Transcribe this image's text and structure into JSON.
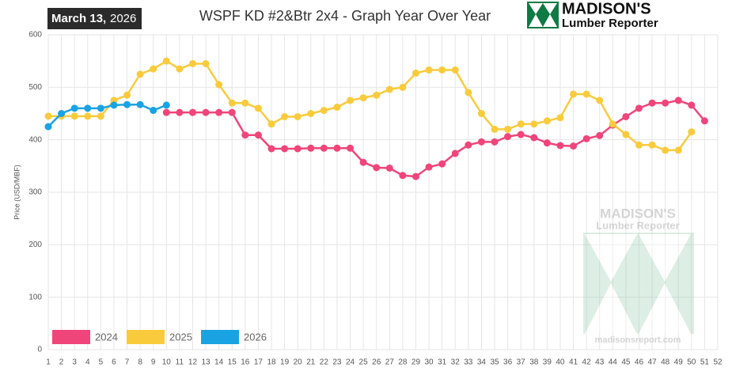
{
  "header": {
    "date_bold": "March 13,",
    "date_year": "2026",
    "logo_name": "MADISON'S",
    "logo_sub": "Lumber Reporter"
  },
  "watermark": {
    "name": "MADISON'S",
    "sub": "Lumber Reporter",
    "url": "madisonsreport.com"
  },
  "chart_data": {
    "type": "line",
    "title": "WSPF KD #2&Btr 2x4 - Graph Year Over Year",
    "y_label": "Price (USD/MBF)",
    "categories": [
      "1",
      "2",
      "3",
      "4",
      "5",
      "6",
      "7",
      "8",
      "9",
      "10",
      "11",
      "12",
      "13",
      "14",
      "15",
      "16",
      "17",
      "18",
      "19",
      "20",
      "21",
      "22",
      "23",
      "24",
      "25",
      "26",
      "27",
      "28",
      "29",
      "30",
      "31",
      "32",
      "33",
      "34",
      "35",
      "36",
      "37",
      "38",
      "39",
      "40",
      "41",
      "42",
      "43",
      "44",
      "45",
      "46",
      "47",
      "48",
      "49",
      "50",
      "51",
      "52"
    ],
    "series": [
      {
        "name": "2024",
        "color": "#f0457a",
        "values": [
          null,
          null,
          null,
          null,
          null,
          null,
          null,
          null,
          null,
          452,
          452,
          452,
          452,
          452,
          452,
          409,
          409,
          383,
          383,
          383,
          384,
          384,
          384,
          384,
          357,
          347,
          346,
          332,
          330,
          348,
          354,
          374,
          390,
          396,
          396,
          406,
          410,
          404,
          394,
          389,
          388,
          402,
          408,
          428,
          444,
          460,
          470,
          470,
          475,
          466,
          436,
          null
        ]
      },
      {
        "name": "2025",
        "color": "#f9cb3c",
        "values": [
          445,
          445,
          445,
          445,
          445,
          475,
          485,
          525,
          535,
          550,
          535,
          545,
          545,
          505,
          470,
          470,
          460,
          430,
          444,
          444,
          450,
          456,
          462,
          475,
          480,
          485,
          496,
          500,
          527,
          533,
          533,
          533,
          490,
          450,
          420,
          420,
          430,
          430,
          436,
          442,
          487,
          487,
          475,
          430,
          410,
          390,
          390,
          380,
          380,
          415,
          null,
          null
        ]
      },
      {
        "name": "2026",
        "color": "#19a3e3",
        "values": [
          425,
          450,
          460,
          460,
          460,
          466,
          467,
          467,
          456,
          466,
          null,
          null,
          null,
          null,
          null,
          null,
          null,
          null,
          null,
          null,
          null,
          null,
          null,
          null,
          null,
          null,
          null,
          null,
          null,
          null,
          null,
          null,
          null,
          null,
          null,
          null,
          null,
          null,
          null,
          null,
          null,
          null,
          null,
          null,
          null,
          null,
          null,
          null,
          null,
          null,
          null,
          null
        ]
      }
    ],
    "ylim": [
      0,
      600
    ],
    "yticks": [
      0,
      100,
      200,
      300,
      400,
      500,
      600
    ],
    "grid": true,
    "legend": "lower left"
  }
}
